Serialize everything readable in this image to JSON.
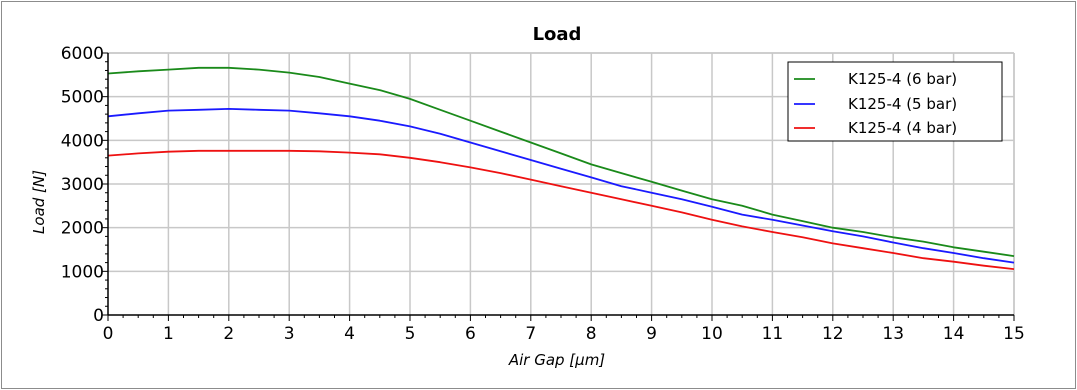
{
  "chart_data": {
    "type": "line",
    "title": "Load",
    "xlabel": "Air Gap [µm]",
    "ylabel": "Load [N]",
    "xlim": [
      0,
      15
    ],
    "ylim": [
      0,
      6000
    ],
    "x_ticks": [
      "0",
      "1",
      "2",
      "3",
      "4",
      "5",
      "6",
      "7",
      "8",
      "9",
      "10",
      "11",
      "12",
      "13",
      "14",
      "15"
    ],
    "y_ticks": [
      "0",
      "1000",
      "2000",
      "3000",
      "4000",
      "5000",
      "6000"
    ],
    "grid": true,
    "legend_position": "top-right",
    "series": [
      {
        "name": "K125-4 (6 bar)",
        "color": "#1a8a1a",
        "x": [
          0,
          0.5,
          1,
          1.5,
          2,
          2.5,
          3,
          3.5,
          4,
          4.5,
          5,
          5.5,
          6,
          6.5,
          7,
          7.5,
          8,
          8.5,
          9,
          9.5,
          10,
          10.5,
          11,
          11.5,
          12,
          12.5,
          13,
          13.5,
          14,
          14.5,
          15
        ],
        "y": [
          5530,
          5580,
          5620,
          5660,
          5660,
          5620,
          5550,
          5450,
          5300,
          5150,
          4950,
          4700,
          4450,
          4200,
          3950,
          3700,
          3450,
          3250,
          3050,
          2850,
          2650,
          2500,
          2300,
          2150,
          2000,
          1900,
          1780,
          1680,
          1550,
          1450,
          1350
        ]
      },
      {
        "name": "K125-4 (5 bar)",
        "color": "#1a1aff",
        "x": [
          0,
          0.5,
          1,
          1.5,
          2,
          2.5,
          3,
          3.5,
          4,
          4.5,
          5,
          5.5,
          6,
          6.5,
          7,
          7.5,
          8,
          8.5,
          9,
          9.5,
          10,
          10.5,
          11,
          11.5,
          12,
          12.5,
          13,
          13.5,
          14,
          14.5,
          15
        ],
        "y": [
          4550,
          4620,
          4680,
          4700,
          4720,
          4700,
          4680,
          4620,
          4550,
          4450,
          4320,
          4150,
          3950,
          3750,
          3550,
          3350,
          3150,
          2950,
          2800,
          2650,
          2480,
          2300,
          2180,
          2050,
          1920,
          1800,
          1660,
          1530,
          1420,
          1300,
          1200
        ]
      },
      {
        "name": "K125-4 (4 bar)",
        "color": "#ee1111",
        "x": [
          0,
          0.5,
          1,
          1.5,
          2,
          2.5,
          3,
          3.5,
          4,
          4.5,
          5,
          5.5,
          6,
          6.5,
          7,
          7.5,
          8,
          8.5,
          9,
          9.5,
          10,
          10.5,
          11,
          11.5,
          12,
          12.5,
          13,
          13.5,
          14,
          14.5,
          15
        ],
        "y": [
          3650,
          3700,
          3740,
          3760,
          3760,
          3760,
          3760,
          3750,
          3720,
          3680,
          3600,
          3500,
          3380,
          3250,
          3100,
          2950,
          2800,
          2650,
          2500,
          2350,
          2180,
          2030,
          1900,
          1780,
          1640,
          1530,
          1420,
          1300,
          1220,
          1130,
          1050
        ]
      }
    ]
  }
}
